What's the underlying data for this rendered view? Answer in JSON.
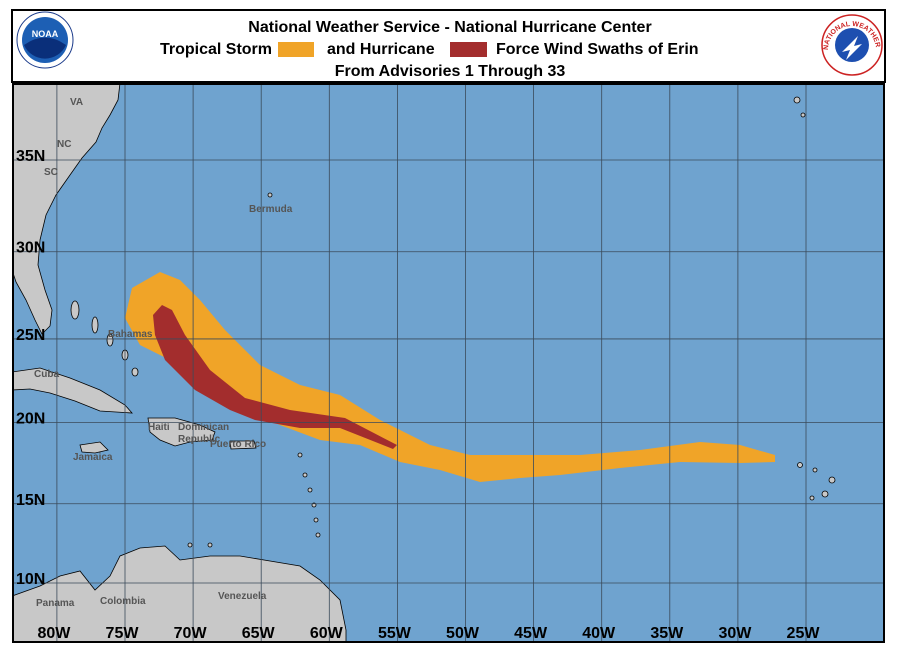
{
  "header": {
    "title": "National Weather Service - National Hurricane Center",
    "legend": [
      {
        "label": "Tropical Storm",
        "color": "#f0a428"
      },
      {
        "label": "and Hurricane",
        "color": "#a32d2d"
      }
    ],
    "legend_suffix": "Force Wind Swaths of Erin",
    "subtitle": "From Advisories 1 Through 33",
    "noaa_logo": "NOAA",
    "nws_logo": "NATIONAL WEATHER SERVICE"
  },
  "map": {
    "lon_ticks": [
      {
        "value": -80,
        "label": "80W"
      },
      {
        "value": -75,
        "label": "75W"
      },
      {
        "value": -70,
        "label": "70W"
      },
      {
        "value": -65,
        "label": "65W"
      },
      {
        "value": -60,
        "label": "60W"
      },
      {
        "value": -55,
        "label": "55W"
      },
      {
        "value": -50,
        "label": "50W"
      },
      {
        "value": -45,
        "label": "45W"
      },
      {
        "value": -40,
        "label": "40W"
      },
      {
        "value": -35,
        "label": "35W"
      },
      {
        "value": -30,
        "label": "30W"
      },
      {
        "value": -25,
        "label": "25W"
      }
    ],
    "lat_ticks": [
      {
        "value": 35,
        "label": "35N"
      },
      {
        "value": 30,
        "label": "30N"
      },
      {
        "value": 25,
        "label": "25N"
      },
      {
        "value": 20,
        "label": "20N"
      },
      {
        "value": 15,
        "label": "15N"
      },
      {
        "value": 10,
        "label": "10N"
      }
    ],
    "places": [
      "VA",
      "NC",
      "SC",
      "Bermuda",
      "Bahamas",
      "Cuba",
      "Haiti",
      "Dominican",
      "Republic",
      "Puerto Rico",
      "Jamaica",
      "Panama",
      "Colombia",
      "Venezuela"
    ]
  }
}
